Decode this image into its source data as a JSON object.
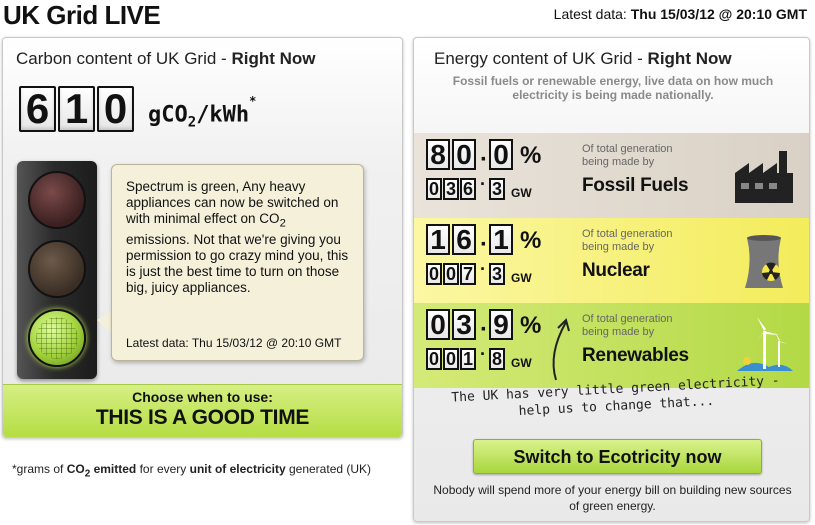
{
  "header": {
    "title": "UK Grid LIVE",
    "latest_label": "Latest data:",
    "latest_value": "Thu 15/03/12 @ 20:10 GMT"
  },
  "carbon": {
    "heading_prefix": "Carbon content of UK Grid - ",
    "heading_bold": "Right Now",
    "value": 610,
    "digits": [
      "6",
      "1",
      "0"
    ],
    "unit_g": "gCO",
    "unit_sub": "2",
    "unit_rest": "/kWh",
    "unit_star": "*",
    "traffic_light_state": "green",
    "message_part1": "Spectrum is green, Any heavy appliances can now be switched on with minimal effect on CO",
    "message_sub": "2",
    "message_part2": " emissions. Not that we're giving you permission to go crazy mind you, this is just the best time to turn on those big, juicy appliances.",
    "bubble_latest": "Latest data: Thu 15/03/12 @ 20:10 GMT",
    "choose_label": "Choose when to use:",
    "choose_value": "THIS IS A GOOD TIME",
    "footnote_star": "*grams of ",
    "footnote_co": "CO",
    "footnote_sub": "2",
    "footnote_emitted": " emitted",
    "footnote_for": " for every ",
    "footnote_unit": "unit of electricity",
    "footnote_end": " generated (UK)"
  },
  "energy": {
    "heading_prefix": "Energy content of UK Grid - ",
    "heading_bold": "Right Now",
    "subheading": "Fossil fuels or renewable energy, live data on how much electricity is being made nationally.",
    "of_total_text": "Of total generation being made by",
    "sources": [
      {
        "name": "Fossil Fuels",
        "percent": 80.0,
        "pct_digits": [
          "8",
          "0",
          "0"
        ],
        "gw": 36.3,
        "gw_digits": [
          "0",
          "3",
          "6",
          "3"
        ],
        "icon": "factory-icon"
      },
      {
        "name": "Nuclear",
        "percent": 16.1,
        "pct_digits": [
          "1",
          "6",
          "1"
        ],
        "gw": 7.3,
        "gw_digits": [
          "0",
          "0",
          "7",
          "3"
        ],
        "icon": "nuclear-icon"
      },
      {
        "name": "Renewables",
        "percent": 3.9,
        "pct_digits": [
          "0",
          "3",
          "9"
        ],
        "gw": 1.8,
        "gw_digits": [
          "0",
          "0",
          "1",
          "8"
        ],
        "icon": "wind-turbine-icon"
      }
    ],
    "percent_sign": "%",
    "gw_unit": "GW",
    "handwritten_note": "The UK has very little green electricity - help us to change that...",
    "switch_button": "Switch to Ecotricity now",
    "bottom_note": "Nobody will spend more of your energy bill on building new sources of green energy."
  }
}
